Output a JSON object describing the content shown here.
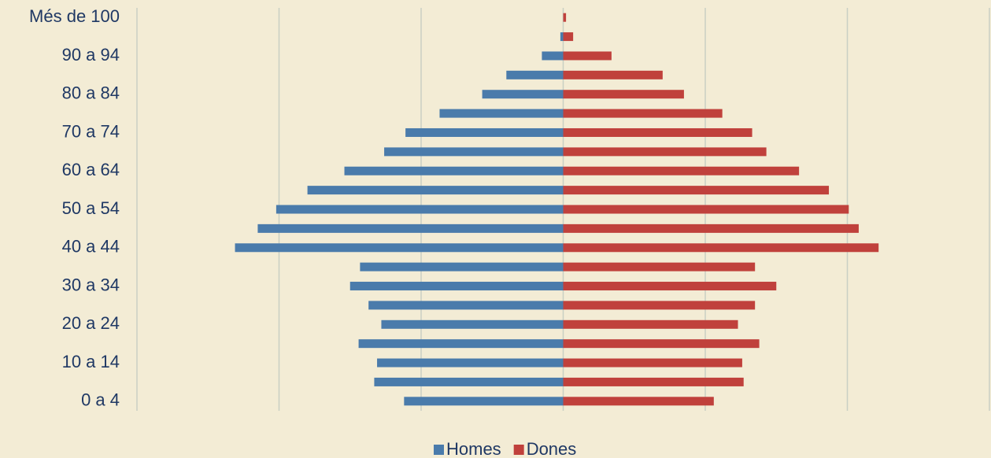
{
  "chart_data": {
    "type": "pyramid",
    "categories": [
      "0 a 4",
      null,
      "10 a 14",
      null,
      "20 a 24",
      null,
      "30 a 34",
      null,
      "40 a 44",
      null,
      "50 a 54",
      null,
      "60 a 64",
      null,
      "70 a 74",
      null,
      "80 a 84",
      null,
      "90 a 94",
      null,
      "Més de 100"
    ],
    "series": [
      {
        "name": "Homes",
        "color": "#4a7bab",
        "values": [
          -1.12,
          -1.33,
          -1.31,
          -1.44,
          -1.28,
          -1.37,
          -1.5,
          -1.43,
          -2.31,
          -2.15,
          -2.02,
          -1.8,
          -1.54,
          -1.26,
          -1.11,
          -0.87,
          -0.57,
          -0.4,
          -0.15,
          -0.02,
          0
        ]
      },
      {
        "name": "Dones",
        "color": "#c0413c",
        "values": [
          1.06,
          1.27,
          1.26,
          1.38,
          1.23,
          1.35,
          1.5,
          1.35,
          2.22,
          2.08,
          2.01,
          1.87,
          1.66,
          1.43,
          1.33,
          1.12,
          0.85,
          0.7,
          0.34,
          0.07,
          0.02
        ]
      }
    ],
    "xlim": [
      -3,
      3
    ],
    "xticks": [
      -3,
      -2,
      -1,
      0,
      1,
      2,
      3
    ],
    "grid": true,
    "legend": "bottom"
  }
}
